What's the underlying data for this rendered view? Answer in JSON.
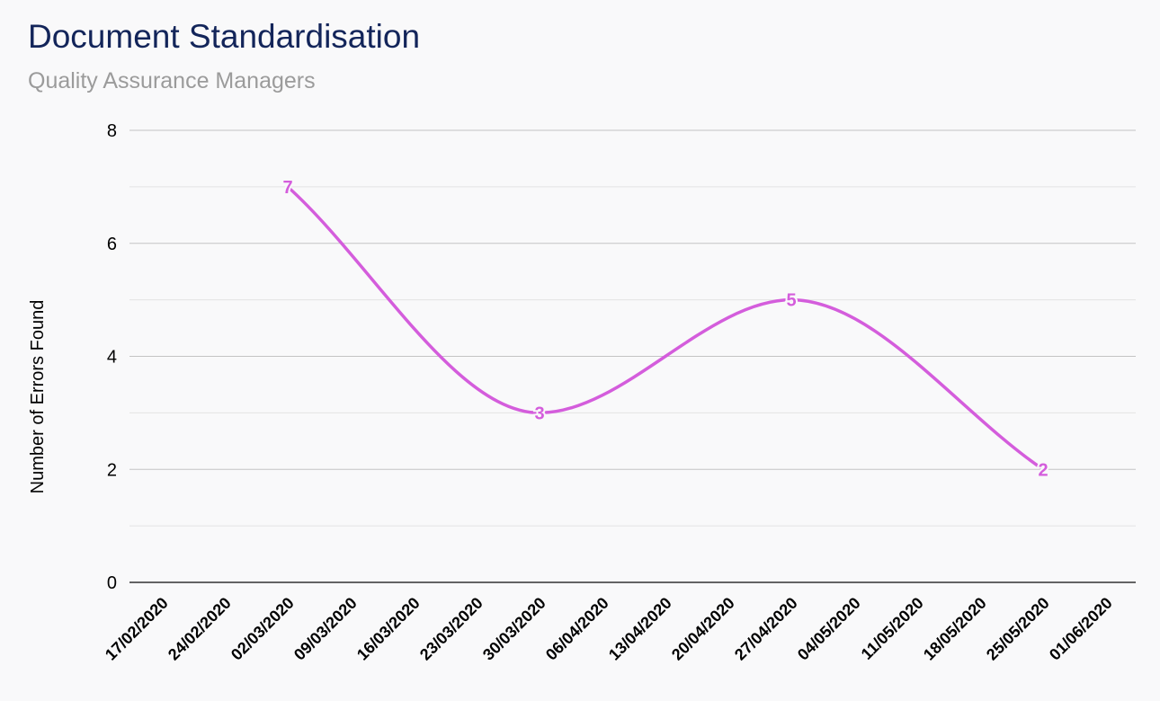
{
  "header": {
    "title": "Document Standardisation",
    "subtitle": "Quality Assurance Managers"
  },
  "chart_data": {
    "type": "line",
    "title": "Document Standardisation",
    "subtitle": "Quality Assurance Managers",
    "xlabel": "",
    "ylabel": "Number of Errors Found",
    "categories": [
      "17/02/2020",
      "24/02/2020",
      "02/03/2020",
      "09/03/2020",
      "16/03/2020",
      "23/03/2020",
      "30/03/2020",
      "06/04/2020",
      "13/04/2020",
      "20/04/2020",
      "27/04/2020",
      "04/05/2020",
      "11/05/2020",
      "18/05/2020",
      "25/05/2020",
      "01/06/2020"
    ],
    "series": [
      {
        "color": "#d45ddc",
        "smooth": true,
        "points": [
          {
            "x": "02/03/2020",
            "y": 7
          },
          {
            "x": "30/03/2020",
            "y": 3
          },
          {
            "x": "27/04/2020",
            "y": 5
          },
          {
            "x": "25/05/2020",
            "y": 2
          }
        ]
      }
    ],
    "ylim": [
      0,
      8
    ],
    "yticks": [
      0,
      2,
      4,
      6,
      8
    ],
    "grid": true,
    "data_labels": true,
    "legend": "none"
  }
}
